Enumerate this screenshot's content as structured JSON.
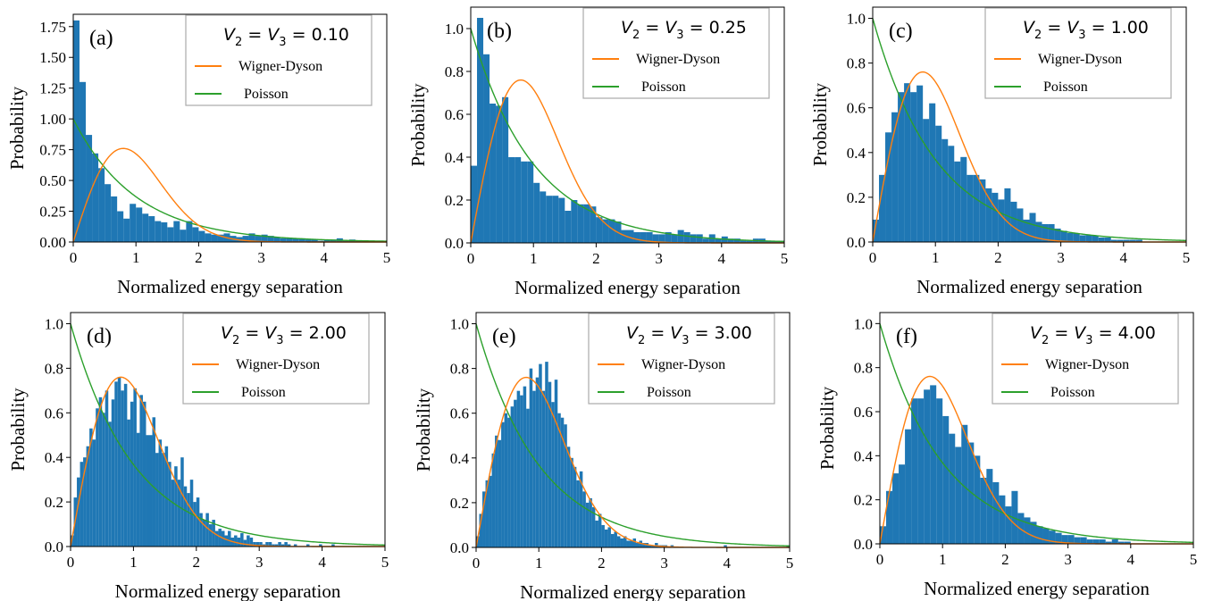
{
  "colors": {
    "histogram": "#1f77b4",
    "wigner_dyson": "#ff7f0e",
    "poisson": "#2ca02c"
  },
  "chart_data": [
    {
      "type": "bar",
      "panel_label": "(a)",
      "legend_title": "V2 = V3 = 0.10",
      "param_value": "0.10",
      "xlabel": "Normalized energy separation",
      "ylabel": "Probability",
      "xlim": [
        0,
        5
      ],
      "ylim": [
        0,
        1.85
      ],
      "xticks": [
        "0",
        "1",
        "2",
        "3",
        "4",
        "5"
      ],
      "yticks": [
        "0.00",
        "0.25",
        "0.50",
        "0.75",
        "1.00",
        "1.25",
        "1.50",
        "1.75"
      ],
      "legend": [
        "Wigner-Dyson",
        "Poisson"
      ],
      "bin_width": 0.1,
      "values": [
        1.8,
        1.3,
        0.87,
        0.72,
        0.6,
        0.47,
        0.37,
        0.25,
        0.19,
        0.31,
        0.28,
        0.23,
        0.21,
        0.17,
        0.16,
        0.12,
        0.17,
        0.1,
        0.17,
        0.12,
        0.09,
        0.07,
        0.06,
        0.06,
        0.07,
        0.05,
        0.04,
        0.05,
        0.07,
        0.05,
        0.06,
        0.05,
        0.04,
        0.03,
        0.03,
        0.03,
        0.03,
        0.02,
        0.02,
        0.01,
        0.02,
        0.02,
        0.03,
        0.01,
        0.02,
        0.01,
        0.01,
        0.01,
        0.0,
        0.0
      ]
    },
    {
      "type": "bar",
      "panel_label": "(b)",
      "legend_title": "V2 = V3 = 0.25",
      "param_value": "0.25",
      "xlabel": "Normalized energy separation",
      "ylabel": "Probability",
      "xlim": [
        0,
        5
      ],
      "ylim": [
        0,
        1.1
      ],
      "xticks": [
        "0",
        "1",
        "2",
        "3",
        "4",
        "5"
      ],
      "yticks": [
        "0.0",
        "0.2",
        "0.4",
        "0.6",
        "0.8",
        "1.0"
      ],
      "legend": [
        "Wigner-Dyson",
        "Poisson"
      ],
      "bin_width": 0.1,
      "values": [
        0.36,
        1.05,
        0.88,
        0.65,
        0.64,
        0.68,
        0.4,
        0.4,
        0.38,
        0.38,
        0.28,
        0.24,
        0.22,
        0.22,
        0.21,
        0.15,
        0.2,
        0.18,
        0.18,
        0.17,
        0.12,
        0.11,
        0.11,
        0.1,
        0.06,
        0.06,
        0.05,
        0.05,
        0.05,
        0.04,
        0.04,
        0.05,
        0.04,
        0.06,
        0.05,
        0.04,
        0.04,
        0.02,
        0.04,
        0.02,
        0.03,
        0.02,
        0.02,
        0.01,
        0.01,
        0.02,
        0.02,
        0.01,
        0.01,
        0.01
      ]
    },
    {
      "type": "bar",
      "panel_label": "(c)",
      "legend_title": "V2 = V3 = 1.00",
      "param_value": "1.00",
      "xlabel": "Normalized energy separation",
      "ylabel": "Probability",
      "xlim": [
        0,
        5
      ],
      "ylim": [
        0,
        1.05
      ],
      "xticks": [
        "0",
        "1",
        "2",
        "3",
        "4",
        "5"
      ],
      "yticks": [
        "0.0",
        "0.2",
        "0.4",
        "0.6",
        "0.8",
        "1.0"
      ],
      "legend": [
        "Wigner-Dyson",
        "Poisson"
      ],
      "bin_width": 0.1,
      "values": [
        0.1,
        0.3,
        0.49,
        0.58,
        0.67,
        0.71,
        0.67,
        0.7,
        0.55,
        0.62,
        0.52,
        0.46,
        0.43,
        0.36,
        0.38,
        0.3,
        0.3,
        0.28,
        0.24,
        0.22,
        0.19,
        0.24,
        0.18,
        0.15,
        0.1,
        0.13,
        0.09,
        0.08,
        0.08,
        0.06,
        0.05,
        0.04,
        0.04,
        0.03,
        0.03,
        0.03,
        0.02,
        0.02,
        0.01,
        0.01,
        0.01,
        0.01,
        0.01,
        0.0,
        0.0,
        0.0,
        0.0,
        0.0,
        0.0,
        0.0
      ]
    },
    {
      "type": "bar",
      "panel_label": "(d)",
      "legend_title": "V2 = V3 = 2.00",
      "param_value": "2.00",
      "xlabel": "Normalized energy separation",
      "ylabel": "Probability",
      "xlim": [
        0,
        5
      ],
      "ylim": [
        0,
        1.05
      ],
      "xticks": [
        "0",
        "1",
        "2",
        "3",
        "4",
        "5"
      ],
      "yticks": [
        "0.0",
        "0.2",
        "0.4",
        "0.6",
        "0.8",
        "1.0"
      ],
      "legend": [
        "Wigner-Dyson",
        "Poisson"
      ],
      "bin_width": 0.05,
      "values": [
        0.05,
        0.22,
        0.31,
        0.38,
        0.4,
        0.45,
        0.53,
        0.48,
        0.62,
        0.67,
        0.6,
        0.7,
        0.56,
        0.66,
        0.74,
        0.76,
        0.7,
        0.73,
        0.57,
        0.65,
        0.71,
        0.51,
        0.68,
        0.65,
        0.5,
        0.5,
        0.58,
        0.42,
        0.48,
        0.42,
        0.45,
        0.38,
        0.3,
        0.36,
        0.3,
        0.4,
        0.27,
        0.24,
        0.3,
        0.2,
        0.22,
        0.15,
        0.12,
        0.15,
        0.1,
        0.12,
        0.07,
        0.08,
        0.07,
        0.05,
        0.07,
        0.04,
        0.05,
        0.04,
        0.06,
        0.03,
        0.05,
        0.04,
        0.02,
        0.02,
        0.02,
        0.01,
        0.02,
        0.02,
        0.01,
        0.01,
        0.02,
        0.01,
        0.02,
        0.01,
        0.0,
        0.01,
        0.0,
        0.0,
        0.0,
        0.01,
        0.0,
        0.0,
        0.0,
        0.01,
        0.0,
        0.0,
        0.0,
        0.01,
        0.0,
        0.0,
        0.0,
        0.0,
        0.0,
        0.0,
        0.0,
        0.0,
        0.0,
        0.0,
        0.0,
        0.0,
        0.0,
        0.0,
        0.0,
        0.0
      ]
    },
    {
      "type": "bar",
      "panel_label": "(e)",
      "legend_title": "V2 = V3 = 3.00",
      "param_value": "3.00",
      "xlabel": "Normalized energy separation",
      "ylabel": "Probability",
      "xlim": [
        0,
        5
      ],
      "ylim": [
        0,
        1.05
      ],
      "xticks": [
        "0",
        "1",
        "2",
        "3",
        "4",
        "5"
      ],
      "yticks": [
        "0.0",
        "0.2",
        "0.4",
        "0.6",
        "0.8",
        "1.0"
      ],
      "legend": [
        "Wigner-Dyson",
        "Poisson"
      ],
      "bin_width": 0.05,
      "values": [
        0.05,
        0.15,
        0.25,
        0.3,
        0.32,
        0.42,
        0.5,
        0.48,
        0.56,
        0.6,
        0.58,
        0.63,
        0.66,
        0.7,
        0.68,
        0.72,
        0.62,
        0.8,
        0.7,
        0.76,
        0.82,
        0.7,
        0.83,
        0.74,
        0.65,
        0.75,
        0.6,
        0.58,
        0.55,
        0.45,
        0.4,
        0.36,
        0.3,
        0.34,
        0.25,
        0.2,
        0.22,
        0.18,
        0.12,
        0.15,
        0.1,
        0.08,
        0.09,
        0.06,
        0.07,
        0.05,
        0.04,
        0.05,
        0.03,
        0.03,
        0.04,
        0.02,
        0.03,
        0.02,
        0.02,
        0.01,
        0.01,
        0.02,
        0.01,
        0.01,
        0.01,
        0.0,
        0.01,
        0.0,
        0.0,
        0.0,
        0.0,
        0.0,
        0.0,
        0.0,
        0.0,
        0.0,
        0.0,
        0.0,
        0.0,
        0.0,
        0.0,
        0.0,
        0.0,
        0.01,
        0.0,
        0.0,
        0.0,
        0.0,
        0.0,
        0.0,
        0.0,
        0.0,
        0.0,
        0.0,
        0.0,
        0.0,
        0.0,
        0.0,
        0.0,
        0.0,
        0.0,
        0.0,
        0.0,
        0.01
      ]
    },
    {
      "type": "bar",
      "panel_label": "(f)",
      "legend_title": "V2 = V3 = 4.00",
      "param_value": "4.00",
      "xlabel": "Normalized energy separation",
      "ylabel": "Probability",
      "xlim": [
        0,
        5
      ],
      "ylim": [
        0,
        1.05
      ],
      "xticks": [
        "0",
        "1",
        "2",
        "3",
        "4",
        "5"
      ],
      "yticks": [
        "0.0",
        "0.2",
        "0.4",
        "0.6",
        "0.8",
        "1.0"
      ],
      "legend": [
        "Wigner-Dyson",
        "Poisson"
      ],
      "bin_width": 0.1,
      "values": [
        0.08,
        0.24,
        0.32,
        0.36,
        0.52,
        0.66,
        0.66,
        0.7,
        0.72,
        0.66,
        0.58,
        0.5,
        0.44,
        0.54,
        0.46,
        0.4,
        0.3,
        0.34,
        0.28,
        0.22,
        0.17,
        0.24,
        0.14,
        0.12,
        0.1,
        0.08,
        0.07,
        0.06,
        0.05,
        0.04,
        0.04,
        0.03,
        0.03,
        0.02,
        0.02,
        0.02,
        0.01,
        0.02,
        0.01,
        0.01,
        0.0,
        0.0,
        0.0,
        0.0,
        0.0,
        0.0,
        0.0,
        0.0,
        0.0,
        0.0
      ]
    }
  ]
}
